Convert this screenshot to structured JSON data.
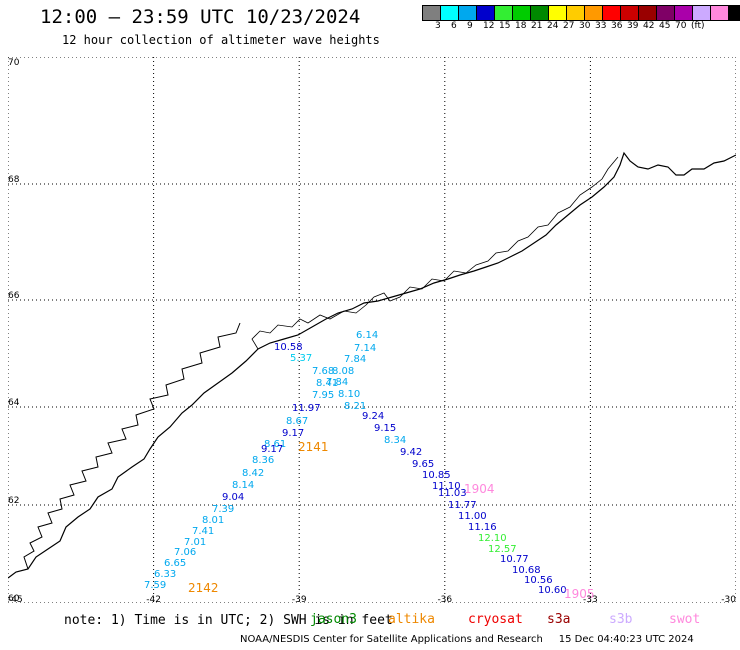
{
  "header": {
    "title": "12:00 — 23:59 UTC 10/23/2024",
    "subtitle": "12 hour collection of altimeter wave heights"
  },
  "colorbar": {
    "colors": [
      "#7f7f7f",
      "#00ffff",
      "#00a8ee",
      "#0000cc",
      "#33ee33",
      "#00cc00",
      "#008800",
      "#ffff00",
      "#ffcc00",
      "#ff9900",
      "#ff0000",
      "#cc0000",
      "#990000",
      "#7f0066",
      "#aa00aa",
      "#ccaaff",
      "#ff88dd",
      "#000000"
    ],
    "labels": [
      "3",
      "6",
      "9",
      "12",
      "15",
      "18",
      "21",
      "24",
      "27",
      "30",
      "33",
      "36",
      "39",
      "42",
      "45",
      "70",
      "(ft)"
    ]
  },
  "map": {
    "lat_labels": [
      "70",
      "68",
      "66",
      "64",
      "62",
      "60"
    ],
    "lon_labels": [
      "-45",
      "-42",
      "-39",
      "-36",
      "-33",
      "-30"
    ],
    "tracks": [
      {
        "id": "2141",
        "color": "#ee8800",
        "points": [
          {
            "v": "6.14",
            "c": "#00a8ee"
          },
          {
            "v": "10.58",
            "c": "#0000cc"
          },
          {
            "v": "7.14",
            "c": "#00a8ee"
          },
          {
            "v": "5.37",
            "c": "#00ccee"
          },
          {
            "v": "7.84",
            "c": "#00a8ee"
          },
          {
            "v": "7.68",
            "c": "#00a8ee"
          },
          {
            "v": "8.08",
            "c": "#00a8ee"
          },
          {
            "v": "8.41",
            "c": "#00a8ee"
          },
          {
            "v": "7.84",
            "c": "#00a8ee"
          },
          {
            "v": "8.10",
            "c": "#00a8ee"
          },
          {
            "v": "7.95",
            "c": "#00a8ee"
          },
          {
            "v": "8.21",
            "c": "#00a8ee"
          },
          {
            "v": "11.97",
            "c": "#0000cc"
          },
          {
            "v": "8.67",
            "c": "#00a8ee"
          },
          {
            "v": "9.17",
            "c": "#0000cc"
          },
          {
            "v": "8.61",
            "c": "#00a8ee"
          },
          {
            "v": "9.17",
            "c": "#0000cc"
          },
          {
            "v": "8.36",
            "c": "#00a8ee"
          },
          {
            "v": "8.42",
            "c": "#00a8ee"
          },
          {
            "v": "8.14",
            "c": "#00a8ee"
          },
          {
            "v": "9.04",
            "c": "#0000cc"
          },
          {
            "v": "7.39",
            "c": "#00a8ee"
          },
          {
            "v": "8.01",
            "c": "#00a8ee"
          },
          {
            "v": "7.41",
            "c": "#00a8ee"
          },
          {
            "v": "7.01",
            "c": "#00a8ee"
          },
          {
            "v": "7.06",
            "c": "#00a8ee"
          },
          {
            "v": "6.65",
            "c": "#00a8ee"
          },
          {
            "v": "6.33",
            "c": "#00a8ee"
          },
          {
            "v": "7.59",
            "c": "#00a8ee"
          }
        ]
      },
      {
        "id": "2142",
        "color": "#ee8800"
      },
      {
        "id": "1904",
        "color": "#ff88dd",
        "points": [
          {
            "v": "9.24",
            "c": "#0000cc"
          },
          {
            "v": "9.15",
            "c": "#0000cc"
          },
          {
            "v": "8.34",
            "c": "#00a8ee"
          },
          {
            "v": "9.42",
            "c": "#0000cc"
          },
          {
            "v": "9.65",
            "c": "#0000cc"
          },
          {
            "v": "10.85",
            "c": "#0000cc"
          },
          {
            "v": "11.10",
            "c": "#0000cc"
          },
          {
            "v": "11.03",
            "c": "#0000cc"
          },
          {
            "v": "11.77",
            "c": "#0000cc"
          },
          {
            "v": "11.00",
            "c": "#0000cc"
          },
          {
            "v": "11.16",
            "c": "#0000cc"
          },
          {
            "v": "12.10",
            "c": "#33ee33"
          },
          {
            "v": "12.57",
            "c": "#33ee33"
          },
          {
            "v": "10.77",
            "c": "#0000cc"
          },
          {
            "v": "10.68",
            "c": "#0000cc"
          },
          {
            "v": "10.56",
            "c": "#0000cc"
          },
          {
            "v": "10.60",
            "c": "#0000cc"
          }
        ]
      },
      {
        "id": "1905",
        "color": "#ff88dd"
      }
    ]
  },
  "footer": {
    "note": "note: 1) Time is in UTC; 2) SWH is in feet",
    "satellites": [
      {
        "name": "jason3",
        "color": "#008800"
      },
      {
        "name": "altika",
        "color": "#ee8800"
      },
      {
        "name": "cryosat",
        "color": "#ee0000"
      },
      {
        "name": "s3a",
        "color": "#990000"
      },
      {
        "name": "s3b",
        "color": "#ccaaff"
      },
      {
        "name": "swot",
        "color": "#ff88dd"
      }
    ],
    "source": "NOAA/NESDIS Center for Satellite Applications and Research",
    "generated": "15 Dec 04:40:23 UTC 2024"
  }
}
